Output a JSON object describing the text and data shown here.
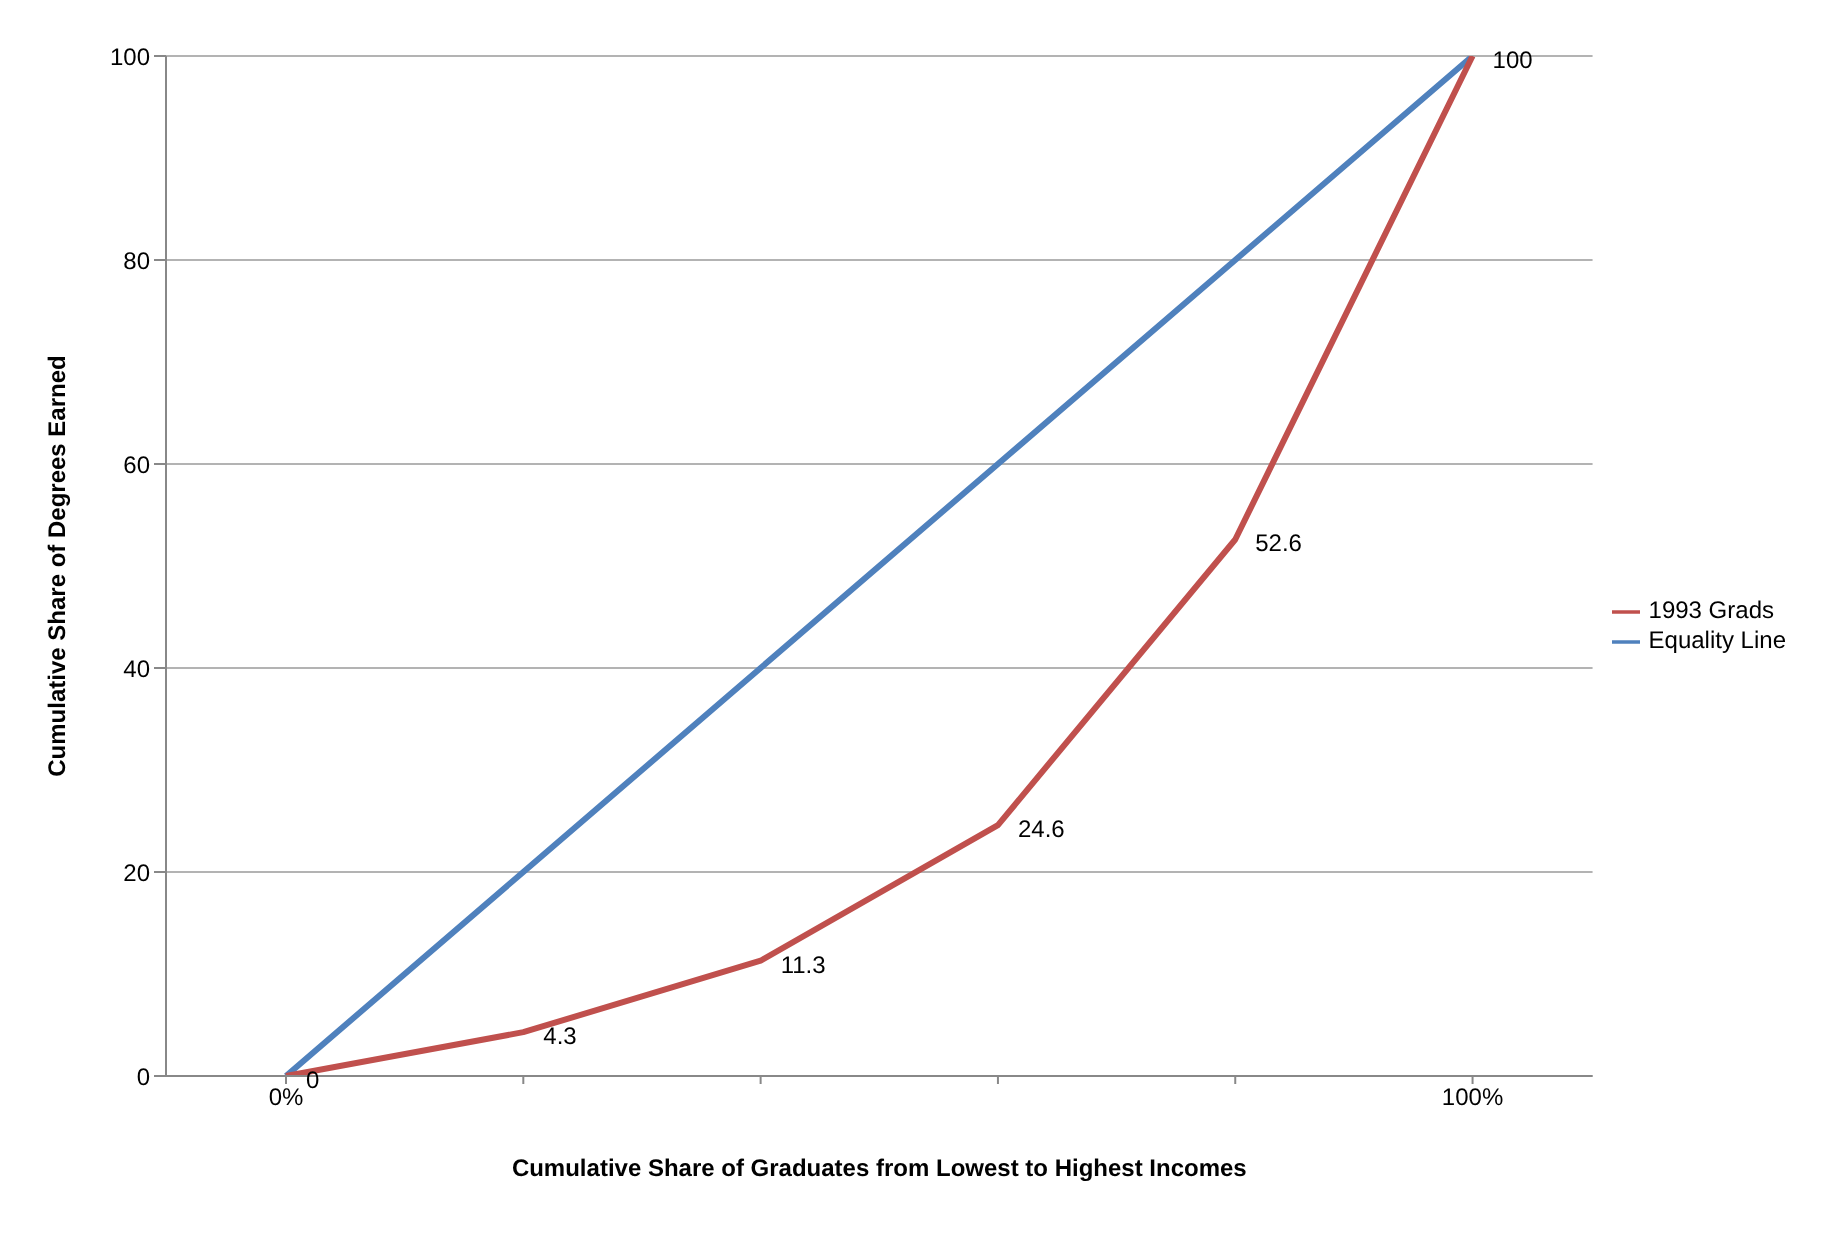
{
  "chart_data": {
    "type": "line",
    "xlabel": "Cumulative Share of Graduates from Lowest to Highest Incomes",
    "ylabel": "Cumulative Share of Degrees Earned",
    "categories": [
      "0%",
      null,
      null,
      null,
      null,
      "100%"
    ],
    "series": [
      {
        "name": "Equality Line",
        "color": "#4f81bd",
        "values": [
          0,
          20,
          40,
          60,
          80,
          100
        ]
      },
      {
        "name": "1993 Grads",
        "color": "#c0504d",
        "values": [
          0,
          4.3,
          11.3,
          24.6,
          52.6,
          100
        ],
        "value_labels": [
          "0",
          "4.3",
          "11.3",
          "24.6",
          "52.6",
          "100"
        ]
      }
    ],
    "ylim": [
      0,
      100
    ],
    "yticks": [
      0,
      20,
      40,
      60,
      80,
      100
    ],
    "grid": "y",
    "legend": "right",
    "marker": "none",
    "line_style": "solid"
  }
}
